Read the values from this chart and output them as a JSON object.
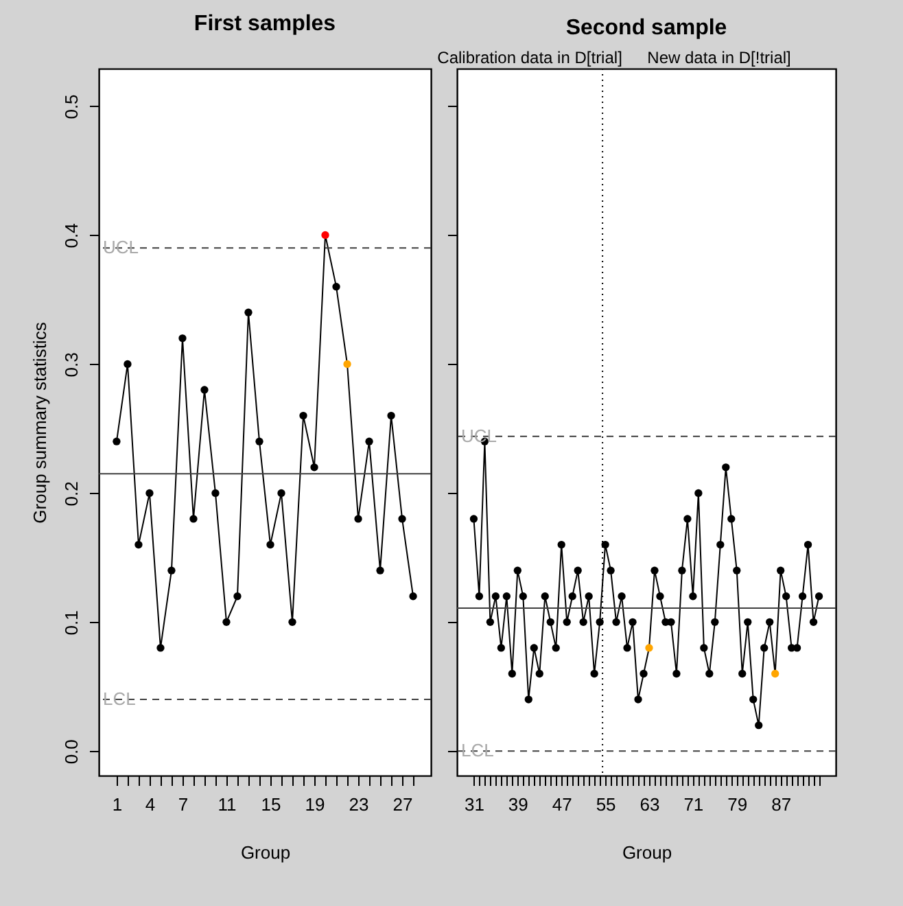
{
  "chart_data": [
    {
      "type": "line",
      "title": "First samples",
      "xlabel": "Group",
      "ylabel": "Group summary statistics",
      "marker": "circle",
      "line_style": "solid",
      "grid": false,
      "x": [
        1,
        2,
        3,
        4,
        5,
        6,
        7,
        8,
        9,
        10,
        11,
        12,
        13,
        14,
        15,
        16,
        17,
        18,
        19,
        20,
        21,
        22,
        23,
        24,
        25,
        26,
        27,
        28
      ],
      "xlim": [
        -0.62,
        29.62
      ],
      "xticks": [
        1,
        {
          "value": 2,
          "label": null
        },
        {
          "value": 3,
          "label": null
        },
        4,
        {
          "value": 5,
          "label": null
        },
        {
          "value": 6,
          "label": null
        },
        7,
        {
          "value": 8,
          "label": null
        },
        {
          "value": 9,
          "label": null
        },
        {
          "value": 10,
          "label": null
        },
        11,
        {
          "value": 12,
          "label": null
        },
        {
          "value": 13,
          "label": null
        },
        {
          "value": 14,
          "label": null
        },
        15,
        {
          "value": 16,
          "label": null
        },
        {
          "value": 17,
          "label": null
        },
        {
          "value": 18,
          "label": null
        },
        19,
        {
          "value": 20,
          "label": null
        },
        {
          "value": 21,
          "label": null
        },
        {
          "value": 22,
          "label": null
        },
        23,
        {
          "value": 24,
          "label": null
        },
        {
          "value": 25,
          "label": null
        },
        {
          "value": 26,
          "label": null
        },
        27,
        {
          "value": 28,
          "label": null
        }
      ],
      "ylim": [
        -0.019,
        0.529
      ],
      "yticks": [
        {
          "value": 0,
          "label": "0.0"
        },
        0.1,
        0.2,
        0.3,
        0.4,
        0.5
      ],
      "series": [
        {
          "color": "#000000",
          "values": [
            0.24,
            0.3,
            0.16,
            0.2,
            0.08,
            0.14,
            0.32,
            0.18,
            0.28,
            0.2,
            0.1,
            0.12,
            0.34,
            0.24,
            0.16,
            0.2,
            0.1,
            0.26,
            0.22,
            0.4,
            0.36,
            0.3,
            0.18,
            0.24,
            0.14,
            0.26,
            0.18,
            0.12
          ],
          "colors": [
            "#000000",
            "#000000",
            "#000000",
            "#000000",
            "#000000",
            "#000000",
            "#000000",
            "#000000",
            "#000000",
            "#000000",
            "#000000",
            "#000000",
            "#000000",
            "#000000",
            "#000000",
            "#000000",
            "#000000",
            "#000000",
            "#000000",
            "#ff0000",
            "#000000",
            "#ffa500",
            "#000000",
            "#000000",
            "#000000",
            "#000000",
            "#000000",
            "#000000"
          ]
        }
      ],
      "ref_lines": [
        {
          "axis": "y",
          "value": 0.215,
          "color": "#404040",
          "line_style": "solid"
        },
        {
          "axis": "y",
          "value": 0.39,
          "label": "UCL",
          "color": "#404040",
          "line_style": "dashed"
        },
        {
          "axis": "y",
          "value": 0.04,
          "label": "LCL",
          "color": "#404040",
          "line_style": "dashed"
        }
      ]
    },
    {
      "type": "line",
      "title": "Second sample",
      "xlabel": "Group",
      "marker": "circle",
      "line_style": "solid",
      "grid": false,
      "tick_labels": "x",
      "annotations": [
        "Calibration data in D[trial]",
        "New data in D[!trial]"
      ],
      "x": [
        31,
        32,
        33,
        34,
        35,
        36,
        37,
        38,
        39,
        40,
        41,
        42,
        43,
        44,
        45,
        46,
        47,
        48,
        49,
        50,
        51,
        52,
        53,
        54,
        55,
        56,
        57,
        58,
        59,
        60,
        61,
        62,
        63,
        64,
        65,
        66,
        67,
        68,
        69,
        70,
        71,
        72,
        73,
        74,
        75,
        76,
        77,
        78,
        79,
        80,
        81,
        82,
        83,
        84,
        85,
        86,
        87,
        88,
        89,
        90,
        91,
        92,
        93,
        94
      ],
      "xlim": [
        27.94,
        97.06
      ],
      "xticks": [
        31,
        {
          "value": 32,
          "label": null
        },
        {
          "value": 33,
          "label": null
        },
        {
          "value": 34,
          "label": null
        },
        {
          "value": 35,
          "label": null
        },
        {
          "value": 36,
          "label": null
        },
        {
          "value": 37,
          "label": null
        },
        {
          "value": 38,
          "label": null
        },
        39,
        {
          "value": 40,
          "label": null
        },
        {
          "value": 41,
          "label": null
        },
        {
          "value": 42,
          "label": null
        },
        {
          "value": 43,
          "label": null
        },
        {
          "value": 44,
          "label": null
        },
        {
          "value": 45,
          "label": null
        },
        {
          "value": 46,
          "label": null
        },
        47,
        {
          "value": 48,
          "label": null
        },
        {
          "value": 49,
          "label": null
        },
        {
          "value": 50,
          "label": null
        },
        {
          "value": 51,
          "label": null
        },
        {
          "value": 52,
          "label": null
        },
        {
          "value": 53,
          "label": null
        },
        {
          "value": 54,
          "label": null
        },
        55,
        {
          "value": 56,
          "label": null
        },
        {
          "value": 57,
          "label": null
        },
        {
          "value": 58,
          "label": null
        },
        {
          "value": 59,
          "label": null
        },
        {
          "value": 60,
          "label": null
        },
        {
          "value": 61,
          "label": null
        },
        {
          "value": 62,
          "label": null
        },
        63,
        {
          "value": 64,
          "label": null
        },
        {
          "value": 65,
          "label": null
        },
        {
          "value": 66,
          "label": null
        },
        {
          "value": 67,
          "label": null
        },
        {
          "value": 68,
          "label": null
        },
        {
          "value": 69,
          "label": null
        },
        {
          "value": 70,
          "label": null
        },
        71,
        {
          "value": 72,
          "label": null
        },
        {
          "value": 73,
          "label": null
        },
        {
          "value": 74,
          "label": null
        },
        {
          "value": 75,
          "label": null
        },
        {
          "value": 76,
          "label": null
        },
        {
          "value": 77,
          "label": null
        },
        {
          "value": 78,
          "label": null
        },
        79,
        {
          "value": 80,
          "label": null
        },
        {
          "value": 81,
          "label": null
        },
        {
          "value": 82,
          "label": null
        },
        {
          "value": 83,
          "label": null
        },
        {
          "value": 84,
          "label": null
        },
        {
          "value": 85,
          "label": null
        },
        {
          "value": 86,
          "label": null
        },
        87,
        {
          "value": 88,
          "label": null
        },
        {
          "value": 89,
          "label": null
        },
        {
          "value": 90,
          "label": null
        },
        {
          "value": 91,
          "label": null
        },
        {
          "value": 92,
          "label": null
        },
        {
          "value": 93,
          "label": null
        },
        {
          "value": 94,
          "label": null
        }
      ],
      "ylim": [
        -0.019,
        0.529
      ],
      "yticks": [
        {
          "value": 0,
          "label": null
        },
        {
          "value": 0.1,
          "label": null
        },
        {
          "value": 0.2,
          "label": null
        },
        {
          "value": 0.3,
          "label": null
        },
        {
          "value": 0.4,
          "label": null
        },
        {
          "value": 0.5,
          "label": null
        }
      ],
      "series": [
        {
          "color": "#000000",
          "values": [
            0.18,
            0.12,
            0.24,
            0.1,
            0.12,
            0.08,
            0.12,
            0.06,
            0.14,
            0.12,
            0.04,
            0.08,
            0.06,
            0.12,
            0.1,
            0.08,
            0.16,
            0.1,
            0.12,
            0.14,
            0.1,
            0.12,
            0.06,
            0.1,
            0.16,
            0.14,
            0.1,
            0.12,
            0.08,
            0.1,
            0.04,
            0.06,
            0.08,
            0.14,
            0.12,
            0.1,
            0.1,
            0.06,
            0.14,
            0.18,
            0.12,
            0.2,
            0.08,
            0.06,
            0.1,
            0.16,
            0.22,
            0.18,
            0.14,
            0.06,
            0.1,
            0.04,
            0.02,
            0.08,
            0.1,
            0.06,
            0.14,
            0.12,
            0.08,
            0.08,
            0.12,
            0.16,
            0.1,
            0.12
          ],
          "colors": [
            "#000000",
            "#000000",
            "#000000",
            "#000000",
            "#000000",
            "#000000",
            "#000000",
            "#000000",
            "#000000",
            "#000000",
            "#000000",
            "#000000",
            "#000000",
            "#000000",
            "#000000",
            "#000000",
            "#000000",
            "#000000",
            "#000000",
            "#000000",
            "#000000",
            "#000000",
            "#000000",
            "#000000",
            "#000000",
            "#000000",
            "#000000",
            "#000000",
            "#000000",
            "#000000",
            "#000000",
            "#000000",
            "#ffa500",
            "#000000",
            "#000000",
            "#000000",
            "#000000",
            "#000000",
            "#000000",
            "#000000",
            "#000000",
            "#000000",
            "#000000",
            "#000000",
            "#000000",
            "#000000",
            "#000000",
            "#000000",
            "#000000",
            "#000000",
            "#000000",
            "#000000",
            "#000000",
            "#000000",
            "#000000",
            "#ffa500",
            "#000000",
            "#000000",
            "#000000",
            "#000000",
            "#000000",
            "#000000",
            "#000000",
            "#000000"
          ]
        }
      ],
      "ref_lines": [
        {
          "axis": "y",
          "value": 0.1108,
          "color": "#404040",
          "line_style": "solid"
        },
        {
          "axis": "y",
          "value": 0.244,
          "label": "UCL",
          "color": "#404040",
          "line_style": "dashed"
        },
        {
          "axis": "y",
          "value": 0,
          "label": "LCL",
          "color": "#404040",
          "line_style": "dashed"
        },
        {
          "axis": "x",
          "value": 54.5,
          "color": "#000000",
          "line_style": "dotted"
        }
      ]
    }
  ]
}
